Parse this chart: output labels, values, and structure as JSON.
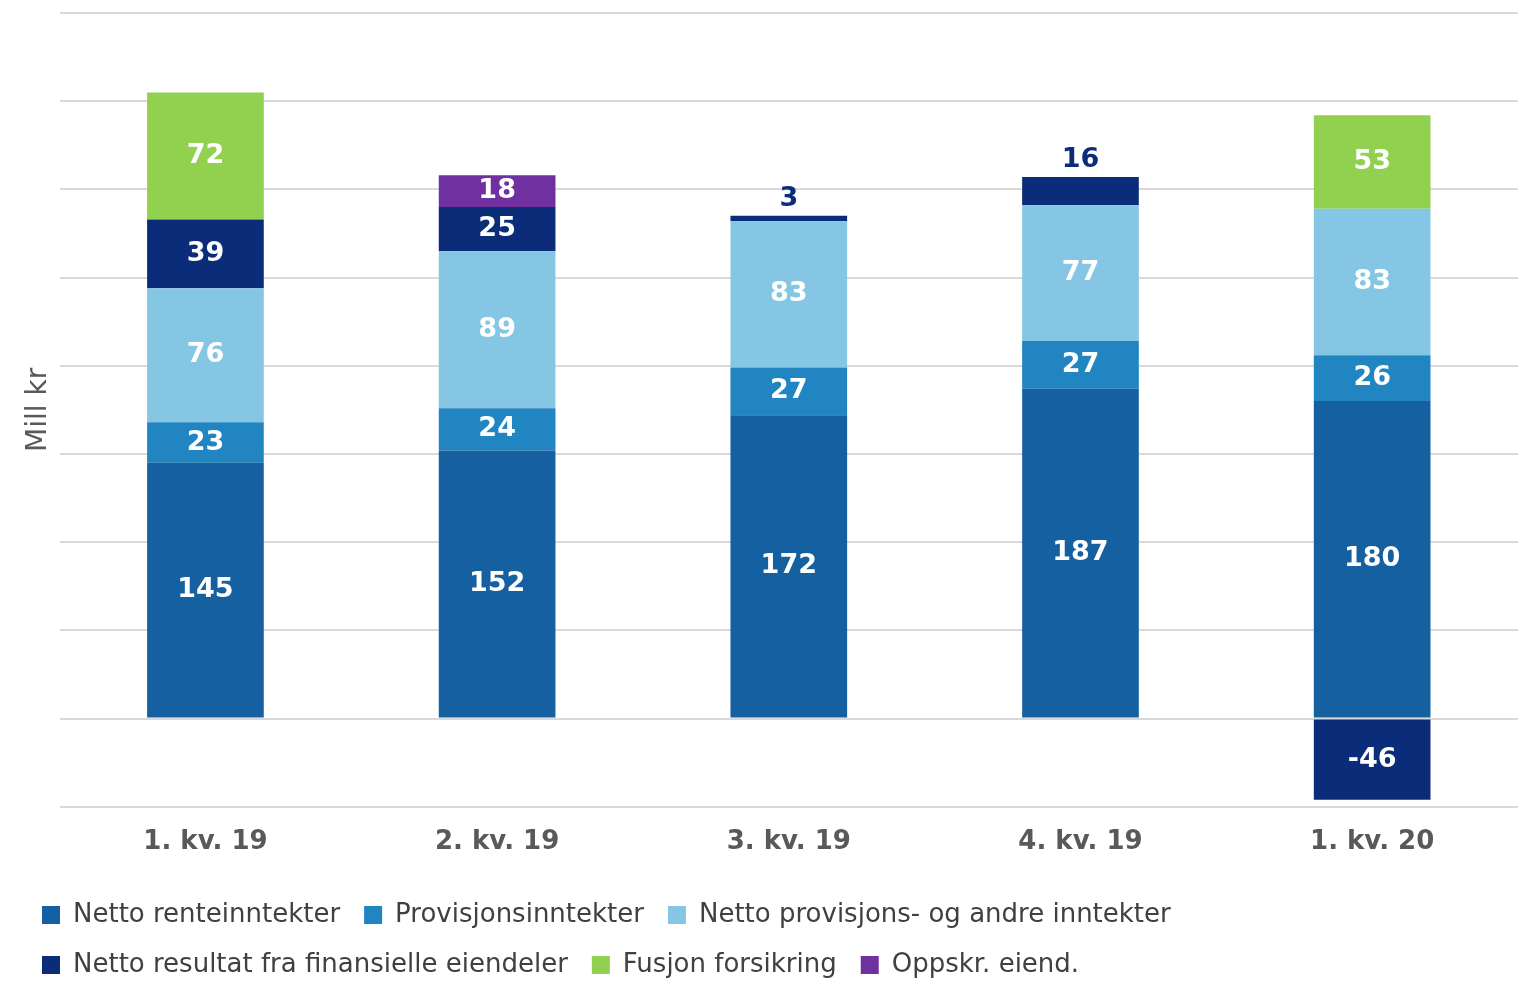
{
  "chart_data": {
    "type": "bar",
    "stacked": true,
    "ylabel": "Mill kr",
    "categories": [
      "1. kv. 19",
      "2. kv. 19",
      "3. kv. 19",
      "4. kv. 19",
      "1. kv. 20"
    ],
    "series": [
      {
        "name": "Netto renteinntekter",
        "color": "#1560a1",
        "values": [
          145,
          152,
          172,
          187,
          180
        ]
      },
      {
        "name": "Provisjonsinntekter",
        "color": "#2185c2",
        "values": [
          23,
          24,
          27,
          27,
          26
        ]
      },
      {
        "name": "Netto provisjons- og andre inntekter",
        "color": "#86c6e5",
        "values": [
          76,
          89,
          83,
          77,
          83
        ]
      },
      {
        "name": "Netto resultat fra finansielle eiendeler",
        "color": "#0b2c78",
        "values": [
          39,
          25,
          3,
          16,
          -46
        ]
      },
      {
        "name": "Fusjon forsikring",
        "color": "#92d050",
        "values": [
          72,
          null,
          null,
          null,
          53
        ]
      },
      {
        "name": "Oppskr. eiend.",
        "color": "#7030a0",
        "values": [
          null,
          18,
          null,
          null,
          null
        ]
      }
    ],
    "data_labels": true,
    "tick_labels": "x",
    "grid": "y",
    "legend": "bottom"
  }
}
